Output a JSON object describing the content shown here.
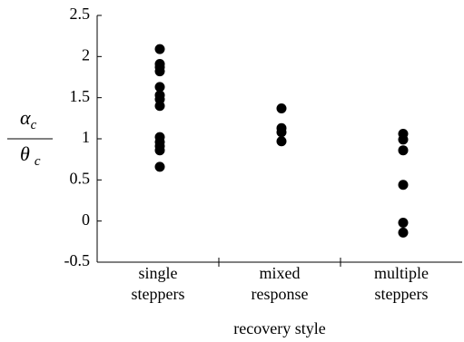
{
  "chart_data": {
    "type": "strip",
    "xlabel": "recovery style",
    "ylabel": {
      "numerator": {
        "symbol": "α",
        "subscript": "c"
      },
      "denominator": {
        "symbol": "θ",
        "subscript": "c"
      }
    },
    "categories": [
      [
        "single",
        "steppers"
      ],
      [
        "mixed",
        "response"
      ],
      [
        "multiple",
        "steppers"
      ]
    ],
    "values": [
      [
        2.09,
        1.91,
        1.87,
        1.82,
        1.63,
        1.53,
        1.48,
        1.4,
        1.02,
        0.96,
        0.91,
        0.86,
        0.66
      ],
      [
        1.37,
        1.13,
        1.08,
        0.97
      ],
      [
        1.06,
        0.99,
        0.86,
        0.44,
        -0.02,
        -0.14
      ]
    ],
    "color": "#000000",
    "ylim": [
      -0.5,
      2.5
    ],
    "yticks": [
      2.5,
      2,
      1.5,
      1,
      0.5,
      0,
      -0.5
    ]
  }
}
